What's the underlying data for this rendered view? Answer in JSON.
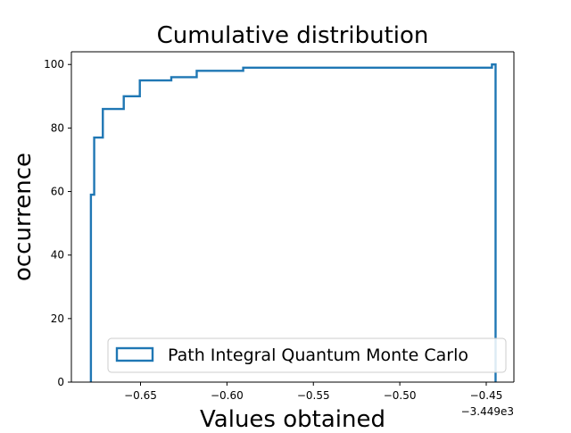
{
  "chart_data": {
    "type": "step",
    "histtype": "cumulative-step",
    "title": "Cumulative distribution",
    "xlabel": "Values obtained",
    "ylabel": "occurrence",
    "x_offset_label": "−3.449e3",
    "xlim": [
      -0.69,
      -0.434
    ],
    "ylim": [
      0,
      104
    ],
    "x_ticks": [
      -0.65,
      -0.6,
      -0.55,
      -0.5,
      -0.45
    ],
    "x_tick_labels": [
      "−0.65",
      "−0.60",
      "−0.55",
      "−0.50",
      "−0.45"
    ],
    "y_ticks": [
      0,
      20,
      40,
      60,
      80,
      100
    ],
    "y_tick_labels": [
      "0",
      "20",
      "40",
      "60",
      "80",
      "100"
    ],
    "grid": false,
    "legend_position": "lower-right",
    "series": [
      {
        "name": "Path Integral Quantum Monte Carlo",
        "color": "#1f77b4",
        "bin_edges": [
          -0.6787,
          -0.6768,
          -0.6718,
          -0.6597,
          -0.6504,
          -0.6322,
          -0.6175,
          -0.5906,
          -0.4467,
          -0.4446
        ],
        "cumulative_counts": [
          59,
          77,
          86,
          90,
          95,
          96,
          98,
          99,
          100
        ]
      }
    ]
  }
}
